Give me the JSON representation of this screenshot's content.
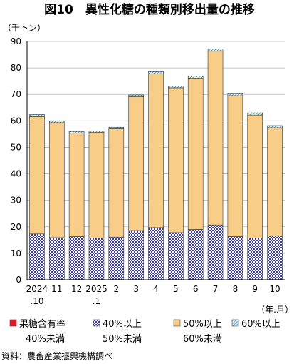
{
  "chart_data": {
    "type": "bar",
    "stacked": true,
    "title": "図10　異性化糖の種類別移出量の推移",
    "y_unit": "（千トン）",
    "x_unit": "（年.月）",
    "ylim": [
      0,
      90
    ],
    "yticks": [
      0,
      10,
      20,
      30,
      40,
      50,
      60,
      70,
      80,
      90
    ],
    "grid": true,
    "categories": [
      "2024.10",
      "11",
      "12",
      "2025.1",
      "2",
      "3",
      "4",
      "5",
      "6",
      "7",
      "8",
      "9",
      "10"
    ],
    "category_labels": [
      {
        "line1": "2024",
        "line2": ".10"
      },
      {
        "line1": "11",
        "line2": ""
      },
      {
        "line1": "12",
        "line2": ""
      },
      {
        "line1": "2025",
        "line2": ".1"
      },
      {
        "line1": "2",
        "line2": ""
      },
      {
        "line1": "3",
        "line2": ""
      },
      {
        "line1": "4",
        "line2": ""
      },
      {
        "line1": "5",
        "line2": ""
      },
      {
        "line1": "6",
        "line2": ""
      },
      {
        "line1": "7",
        "line2": ""
      },
      {
        "line1": "8",
        "line2": ""
      },
      {
        "line1": "9",
        "line2": ""
      },
      {
        "line1": "10",
        "line2": ""
      }
    ],
    "series": [
      {
        "name": "果糖含有率 40%未満",
        "legend_line1": "果糖含有率",
        "legend_line2": "40%未満",
        "color": "#e0182a",
        "pattern": "solid",
        "values": [
          0.1,
          0.1,
          0.1,
          0.1,
          0.1,
          0.1,
          0.1,
          0.1,
          0.1,
          0.1,
          0.1,
          0.1,
          0.1
        ]
      },
      {
        "name": "40%以上 50%未満",
        "legend_line1": "40%以上",
        "legend_line2": "50%未満",
        "color": "#3a3aa8",
        "pattern": "dots",
        "values": [
          17.2,
          15.8,
          16.2,
          15.7,
          16.0,
          18.5,
          19.6,
          17.7,
          18.9,
          20.6,
          16.2,
          15.6,
          16.4
        ]
      },
      {
        "name": "50%以上 60%未満",
        "legend_line1": "50%以上",
        "legend_line2": "60%未満",
        "color": "#f8cd88",
        "pattern": "solid",
        "values": [
          44.3,
          43.4,
          39.1,
          39.8,
          40.9,
          50.5,
          58.1,
          54.7,
          57.1,
          65.6,
          53.2,
          46.5,
          40.9
        ]
      },
      {
        "name": "60%以上",
        "legend_line1": "60%以上",
        "legend_line2": "",
        "color": "#bfe6f2",
        "pattern": "hatch",
        "values": [
          0.8,
          0.7,
          0.6,
          0.6,
          0.6,
          0.7,
          0.8,
          0.7,
          0.8,
          0.9,
          0.7,
          0.8,
          0.8
        ]
      }
    ],
    "source": "資料：農畜産業振興機構調べ"
  }
}
